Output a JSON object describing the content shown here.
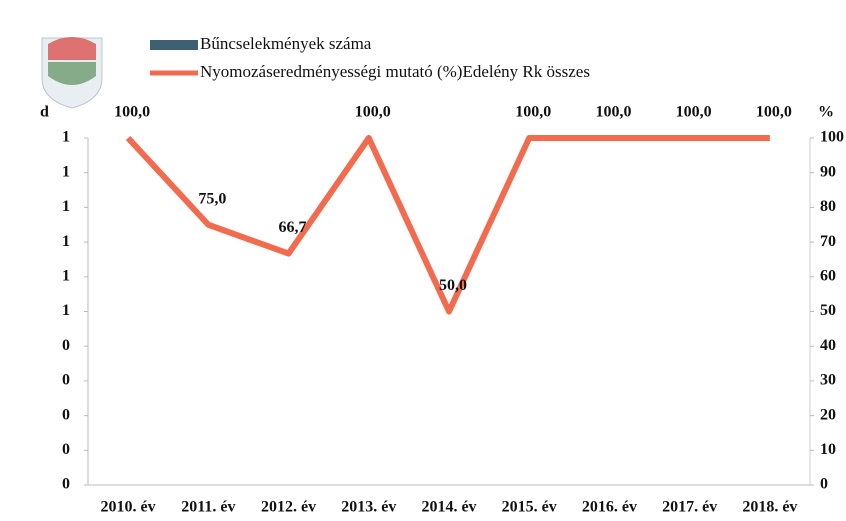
{
  "chart_data": {
    "type": "combo",
    "ylabel": "d",
    "y2label": "%",
    "categories": [
      "2010. év",
      "2011. év",
      "2012. év",
      "2013. év",
      "2014. év",
      "2015. év",
      "2016. év",
      "2017. év",
      "2018. év"
    ],
    "series": [
      {
        "name": "Bűncselekmények száma",
        "type": "bar",
        "color": "#3f5f73",
        "values": [
          null,
          null,
          null,
          null,
          null,
          null,
          null,
          null,
          null
        ]
      },
      {
        "name": "Nyomozáseredményességi mutató (%)Edelény Rk összes",
        "type": "line",
        "axis": "y2",
        "color": "#f26b4f",
        "values": [
          100,
          75,
          66.7,
          100,
          50,
          100,
          100,
          100,
          100
        ],
        "value_labels": [
          "100,0",
          "75,0",
          "66,7",
          "100,0",
          "50,0",
          "100,0",
          "100,0",
          "100,0",
          "100,0"
        ]
      }
    ],
    "ylim": [
      0,
      1
    ],
    "yticks": [
      0,
      {
        "value": 0.1,
        "label": "0"
      },
      {
        "value": 0.2,
        "label": "0"
      },
      {
        "value": 0.3,
        "label": "0"
      },
      {
        "value": 0.4,
        "label": "0"
      },
      {
        "value": 0.5,
        "label": "1"
      },
      {
        "value": 0.6,
        "label": "1"
      },
      {
        "value": 0.7,
        "label": "1"
      },
      {
        "value": 0.8,
        "label": "1"
      },
      {
        "value": 0.9,
        "label": "1"
      },
      1
    ],
    "y2lim": [
      0,
      100
    ],
    "y2ticks": [
      0,
      10,
      20,
      30,
      40,
      50,
      60,
      70,
      80,
      90,
      100
    ]
  }
}
